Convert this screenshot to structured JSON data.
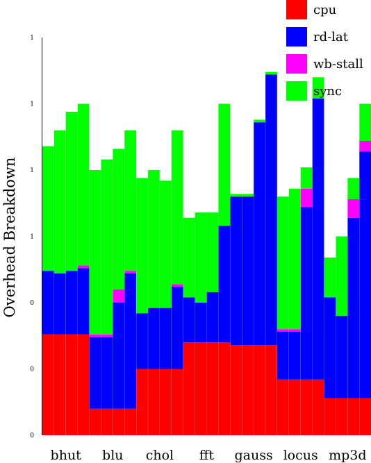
{
  "chart_data": {
    "type": "bar",
    "stacked": true,
    "ylabel": "Overhead Breakdown",
    "ytick_labels": [
      "0",
      "0",
      "0",
      "1",
      "1",
      "1",
      "1"
    ],
    "ylim": [
      0,
      1.5
    ],
    "groups": [
      "bhut",
      "blu",
      "chol",
      "fft",
      "gauss",
      "locus",
      "mp3d"
    ],
    "bars_per_group": 4,
    "legend": {
      "placement": "top-right",
      "entries": [
        {
          "label": "cpu",
          "color": "#ff0000"
        },
        {
          "label": "rd-lat",
          "color": "#0000ff"
        },
        {
          "label": "wb-stall",
          "color": "#ff00ff"
        },
        {
          "label": "sync",
          "color": "#00ff00"
        }
      ]
    },
    "series": [
      {
        "name": "cpu",
        "color": "#ff0000",
        "values": [
          0.38,
          0.38,
          0.38,
          0.38,
          0.1,
          0.1,
          0.1,
          0.1,
          0.25,
          0.25,
          0.25,
          0.25,
          0.35,
          0.35,
          0.35,
          0.35,
          0.34,
          0.34,
          0.34,
          0.34,
          0.21,
          0.21,
          0.21,
          0.21,
          0.14,
          0.14,
          0.14,
          0.14
        ]
      },
      {
        "name": "rd-lat",
        "color": "#0000ff",
        "values": [
          0.24,
          0.23,
          0.24,
          0.25,
          0.27,
          0.27,
          0.4,
          0.51,
          0.21,
          0.23,
          0.23,
          0.31,
          0.17,
          0.15,
          0.19,
          0.44,
          0.56,
          0.56,
          0.84,
          1.02,
          0.18,
          0.18,
          0.65,
          1.06,
          0.38,
          0.31,
          0.68,
          0.93
        ]
      },
      {
        "name": "wb-stall",
        "color": "#ff00ff",
        "values": [
          0.0,
          0.0,
          0.0,
          0.01,
          0.01,
          0.01,
          0.05,
          0.01,
          0.0,
          0.0,
          0.0,
          0.01,
          0.0,
          0.0,
          0.0,
          0.0,
          0.0,
          0.0,
          0.0,
          0.0,
          0.01,
          0.01,
          0.07,
          0.0,
          0.0,
          0.0,
          0.07,
          0.04
        ]
      },
      {
        "name": "sync",
        "color": "#00ff00",
        "values": [
          0.47,
          0.54,
          0.6,
          0.61,
          0.62,
          0.66,
          0.53,
          0.53,
          0.51,
          0.52,
          0.48,
          0.58,
          0.3,
          0.34,
          0.3,
          0.46,
          0.01,
          0.01,
          0.01,
          0.01,
          0.5,
          0.53,
          0.08,
          0.08,
          0.15,
          0.3,
          0.08,
          0.14
        ]
      }
    ]
  }
}
